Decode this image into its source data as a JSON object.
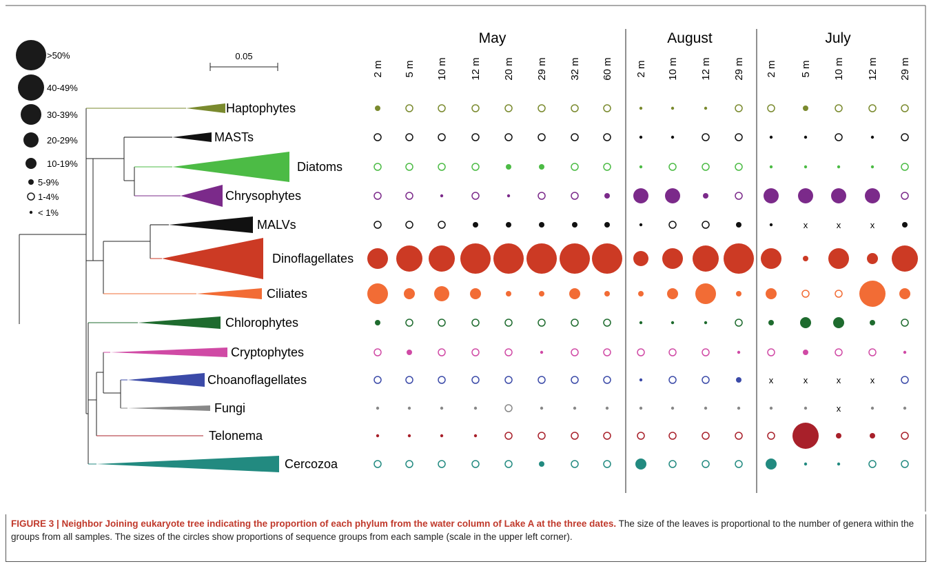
{
  "figure": {
    "scale_bar": "0.05",
    "legend": [
      ">50%",
      "40-49%",
      "30-39%",
      "20-29%",
      "10-19%",
      "5-9%",
      "1-4%",
      "< 1%"
    ],
    "groups": [
      {
        "name": "May",
        "depths": [
          "2 m",
          "5 m",
          "10 m",
          "12 m",
          "20 m",
          "29 m",
          "32 m",
          "60 m"
        ]
      },
      {
        "name": "August",
        "depths": [
          "2 m",
          "10 m",
          "12 m",
          "29 m"
        ]
      },
      {
        "name": "July",
        "depths": [
          "2 m",
          "5 m",
          "10 m",
          "12 m",
          "29 m"
        ]
      }
    ],
    "rows": [
      {
        "name": "Haptophytes",
        "color": "#7a8a2e",
        "cells": [
          "5-9%",
          "1-4%",
          "1-4%",
          "1-4%",
          "1-4%",
          "1-4%",
          "1-4%",
          "1-4%",
          "< 1%",
          "< 1%",
          "< 1%",
          "1-4%",
          "1-4%",
          "5-9%",
          "1-4%",
          "1-4%",
          "1-4%"
        ]
      },
      {
        "name": "MASTs",
        "color": "#111111",
        "cells": [
          "1-4%",
          "1-4%",
          "1-4%",
          "1-4%",
          "1-4%",
          "1-4%",
          "1-4%",
          "1-4%",
          "< 1%",
          "< 1%",
          "1-4%",
          "1-4%",
          "< 1%",
          "< 1%",
          "1-4%",
          "< 1%",
          "1-4%"
        ]
      },
      {
        "name": "Diatoms",
        "color": "#4cbb45",
        "cells": [
          "1-4%",
          "1-4%",
          "1-4%",
          "1-4%",
          "5-9%",
          "5-9%",
          "1-4%",
          "1-4%",
          "< 1%",
          "1-4%",
          "1-4%",
          "1-4%",
          "< 1%",
          "< 1%",
          "< 1%",
          "< 1%",
          "1-4%"
        ]
      },
      {
        "name": "Chrysophytes",
        "color": "#7b2a8a",
        "cells": [
          "1-4%",
          "1-4%",
          "< 1%",
          "1-4%",
          "< 1%",
          "1-4%",
          "1-4%",
          "5-9%",
          "20-29%",
          "20-29%",
          "5-9%",
          "1-4%",
          "20-29%",
          "20-29%",
          "20-29%",
          "20-29%",
          "1-4%"
        ]
      },
      {
        "name": "MALVs",
        "color": "#111111",
        "cells": [
          "1-4%",
          "1-4%",
          "1-4%",
          "5-9%",
          "5-9%",
          "5-9%",
          "5-9%",
          "5-9%",
          "< 1%",
          "1-4%",
          "1-4%",
          "5-9%",
          "< 1%",
          "x",
          "x",
          "x",
          "5-9%"
        ]
      },
      {
        "name": "Dinoflagellates",
        "color": "#cc3a24",
        "cells": [
          "30-39%",
          "40-49%",
          "40-49%",
          ">50%",
          ">50%",
          ">50%",
          ">50%",
          ">50%",
          "20-29%",
          "30-39%",
          "40-49%",
          ">50%",
          "30-39%",
          "5-9%",
          "30-39%",
          "10-19%",
          "40-49%"
        ]
      },
      {
        "name": "Ciliates",
        "color": "#f26c35",
        "cells": [
          "30-39%",
          "10-19%",
          "20-29%",
          "10-19%",
          "5-9%",
          "5-9%",
          "10-19%",
          "5-9%",
          "5-9%",
          "10-19%",
          "30-39%",
          "5-9%",
          "10-19%",
          "1-4%",
          "1-4%",
          "40-49%",
          "10-19%"
        ]
      },
      {
        "name": "Chlorophytes",
        "color": "#1e6b2e",
        "cells": [
          "5-9%",
          "1-4%",
          "1-4%",
          "1-4%",
          "1-4%",
          "1-4%",
          "1-4%",
          "1-4%",
          "< 1%",
          "< 1%",
          "< 1%",
          "1-4%",
          "5-9%",
          "10-19%",
          "10-19%",
          "5-9%",
          "1-4%"
        ]
      },
      {
        "name": "Cryptophytes",
        "color": "#d04aa5",
        "cells": [
          "1-4%",
          "5-9%",
          "1-4%",
          "1-4%",
          "1-4%",
          "< 1%",
          "1-4%",
          "1-4%",
          "1-4%",
          "1-4%",
          "1-4%",
          "< 1%",
          "1-4%",
          "5-9%",
          "1-4%",
          "1-4%",
          "< 1%"
        ]
      },
      {
        "name": "Choanoflagellates",
        "color": "#3b4aa8",
        "cells": [
          "1-4%",
          "1-4%",
          "1-4%",
          "1-4%",
          "1-4%",
          "1-4%",
          "1-4%",
          "1-4%",
          "< 1%",
          "1-4%",
          "1-4%",
          "5-9%",
          "x",
          "x",
          "x",
          "x",
          "1-4%"
        ]
      },
      {
        "name": "Fungi",
        "color": "#888888",
        "cells": [
          "< 1%",
          "< 1%",
          "< 1%",
          "< 1%",
          "1-4%",
          "< 1%",
          "< 1%",
          "< 1%",
          "< 1%",
          "< 1%",
          "< 1%",
          "< 1%",
          "< 1%",
          "< 1%",
          "x",
          "< 1%",
          "< 1%"
        ]
      },
      {
        "name": "Telonema",
        "color": "#a8202a",
        "cells": [
          "< 1%",
          "< 1%",
          "< 1%",
          "< 1%",
          "1-4%",
          "1-4%",
          "1-4%",
          "1-4%",
          "1-4%",
          "1-4%",
          "1-4%",
          "1-4%",
          "1-4%",
          "40-49%",
          "5-9%",
          "5-9%",
          "1-4%"
        ]
      },
      {
        "name": "Cercozoa",
        "color": "#228a80",
        "cells": [
          "1-4%",
          "1-4%",
          "1-4%",
          "1-4%",
          "1-4%",
          "5-9%",
          "1-4%",
          "1-4%",
          "10-19%",
          "1-4%",
          "1-4%",
          "1-4%",
          "10-19%",
          "< 1%",
          "< 1%",
          "1-4%",
          "1-4%"
        ]
      }
    ]
  },
  "caption": {
    "title": "FIGURE 3 | Neighbor Joining eukaryote tree indicating the proportion of each phylum from the water column of Lake A at the three dates.",
    "text": "The size of the leaves is proportional to the number of genera within the groups from all samples. The sizes of the circles show proportions of sequence groups from each sample (scale in the upper left corner)."
  }
}
